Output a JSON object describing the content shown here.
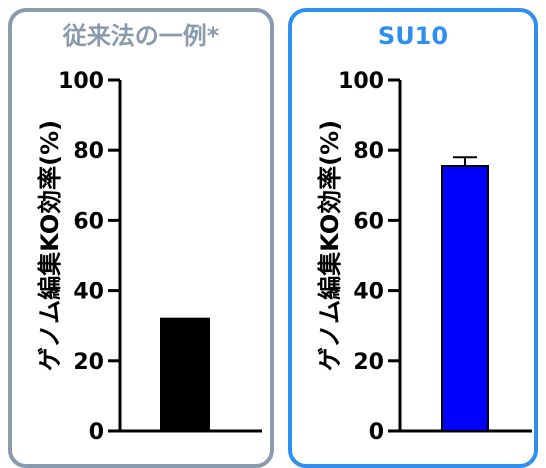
{
  "panels": [
    {
      "title": "従来法の一例*",
      "border_color": "#8a9bad",
      "title_color": "#8a9bad"
    },
    {
      "title": "SU10",
      "border_color": "#2f8ff0",
      "title_color": "#2f8ff0"
    }
  ],
  "chart_data": [
    {
      "type": "bar",
      "title": "従来法の一例*",
      "ylabel": "ゲノム編集KO効率(%)",
      "ylim": [
        0,
        100
      ],
      "yticks": [
        0,
        20,
        40,
        60,
        80,
        100
      ],
      "categories": [
        ""
      ],
      "values": [
        32
      ],
      "bar_color": "#000000"
    },
    {
      "type": "bar",
      "title": "SU10",
      "ylabel": "ゲノム編集KO効率(%)",
      "ylim": [
        0,
        100
      ],
      "yticks": [
        0,
        20,
        40,
        60,
        80,
        100
      ],
      "categories": [
        ""
      ],
      "values": [
        75.5
      ],
      "error": [
        2.5
      ],
      "bar_color": "#0000ff"
    }
  ]
}
